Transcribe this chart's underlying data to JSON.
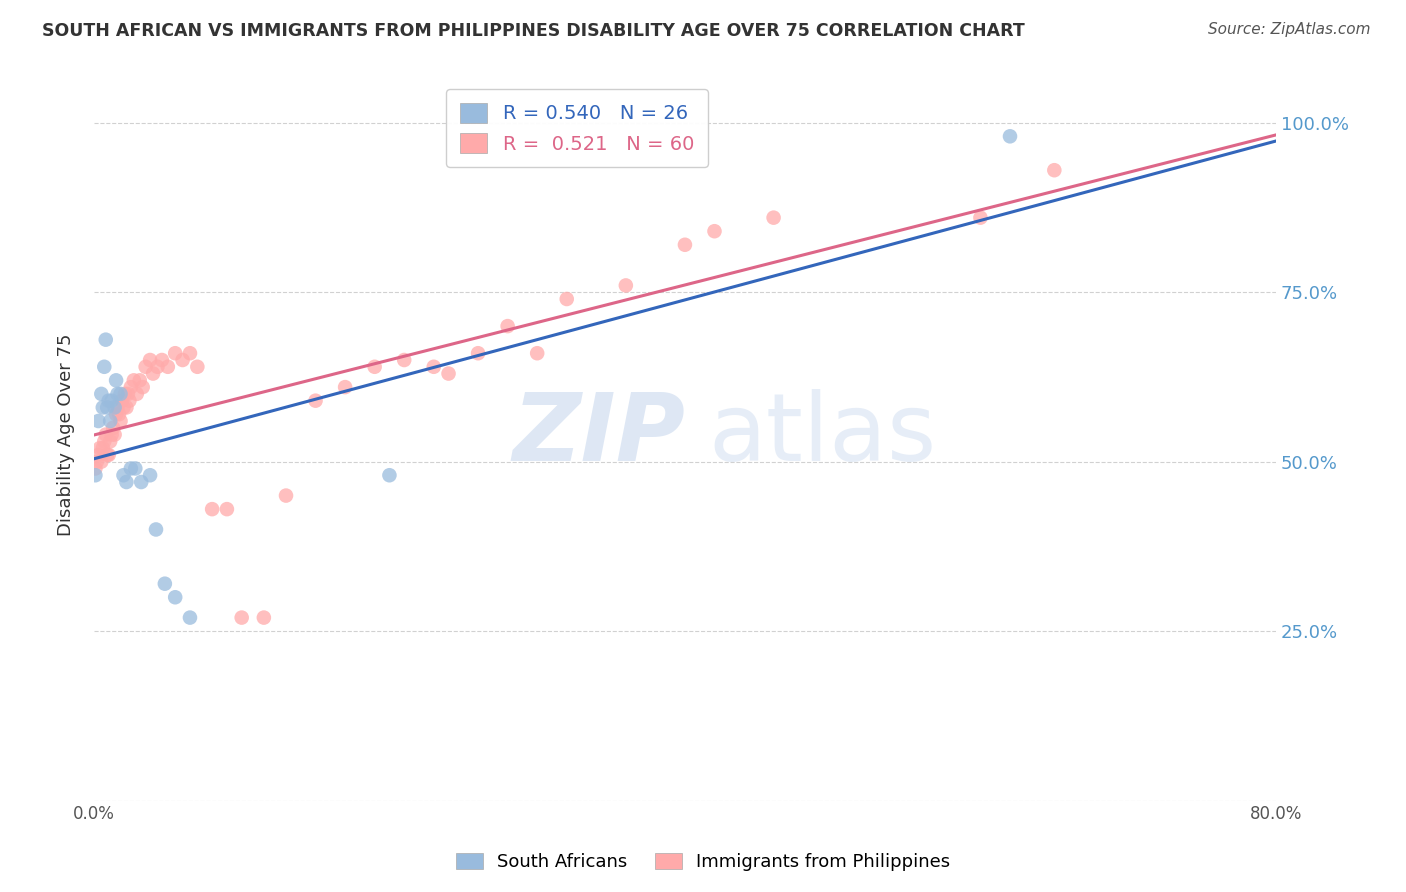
{
  "title": "SOUTH AFRICAN VS IMMIGRANTS FROM PHILIPPINES DISABILITY AGE OVER 75 CORRELATION CHART",
  "source": "Source: ZipAtlas.com",
  "ylabel": "Disability Age Over 75",
  "xlim": [
    0.0,
    0.8
  ],
  "ylim": [
    0.0,
    1.08
  ],
  "legend_blue_r": "0.540",
  "legend_blue_n": "26",
  "legend_pink_r": "0.521",
  "legend_pink_n": "60",
  "blue_scatter_color": "#99BBDD",
  "pink_scatter_color": "#FFAAAA",
  "blue_line_color": "#3366BB",
  "pink_line_color": "#DD6688",
  "background_color": "#FFFFFF",
  "grid_color": "#CCCCCC",
  "title_color": "#333333",
  "right_label_color": "#5599CC",
  "sa_x": [
    0.001,
    0.003,
    0.005,
    0.006,
    0.007,
    0.008,
    0.009,
    0.01,
    0.011,
    0.012,
    0.014,
    0.015,
    0.016,
    0.018,
    0.02,
    0.022,
    0.025,
    0.028,
    0.032,
    0.038,
    0.042,
    0.048,
    0.055,
    0.065,
    0.2,
    0.62
  ],
  "sa_y": [
    0.48,
    0.56,
    0.6,
    0.58,
    0.64,
    0.68,
    0.58,
    0.59,
    0.56,
    0.59,
    0.58,
    0.62,
    0.6,
    0.6,
    0.48,
    0.47,
    0.49,
    0.49,
    0.47,
    0.48,
    0.4,
    0.32,
    0.3,
    0.27,
    0.48,
    0.98
  ],
  "ph_x": [
    0.001,
    0.002,
    0.003,
    0.004,
    0.005,
    0.006,
    0.007,
    0.008,
    0.009,
    0.01,
    0.011,
    0.012,
    0.013,
    0.014,
    0.015,
    0.016,
    0.017,
    0.018,
    0.019,
    0.02,
    0.021,
    0.022,
    0.023,
    0.024,
    0.025,
    0.027,
    0.029,
    0.031,
    0.033,
    0.035,
    0.038,
    0.04,
    0.043,
    0.046,
    0.05,
    0.055,
    0.06,
    0.065,
    0.07,
    0.08,
    0.09,
    0.1,
    0.115,
    0.13,
    0.15,
    0.17,
    0.19,
    0.21,
    0.23,
    0.24,
    0.26,
    0.28,
    0.3,
    0.32,
    0.36,
    0.4,
    0.42,
    0.46,
    0.6,
    0.65
  ],
  "ph_y": [
    0.49,
    0.5,
    0.51,
    0.52,
    0.5,
    0.52,
    0.53,
    0.54,
    0.51,
    0.51,
    0.53,
    0.54,
    0.55,
    0.54,
    0.57,
    0.58,
    0.57,
    0.56,
    0.59,
    0.58,
    0.6,
    0.58,
    0.6,
    0.59,
    0.61,
    0.62,
    0.6,
    0.62,
    0.61,
    0.64,
    0.65,
    0.63,
    0.64,
    0.65,
    0.64,
    0.66,
    0.65,
    0.66,
    0.64,
    0.43,
    0.43,
    0.27,
    0.27,
    0.45,
    0.59,
    0.61,
    0.64,
    0.65,
    0.64,
    0.63,
    0.66,
    0.7,
    0.66,
    0.74,
    0.76,
    0.82,
    0.84,
    0.86,
    0.86,
    0.93
  ]
}
